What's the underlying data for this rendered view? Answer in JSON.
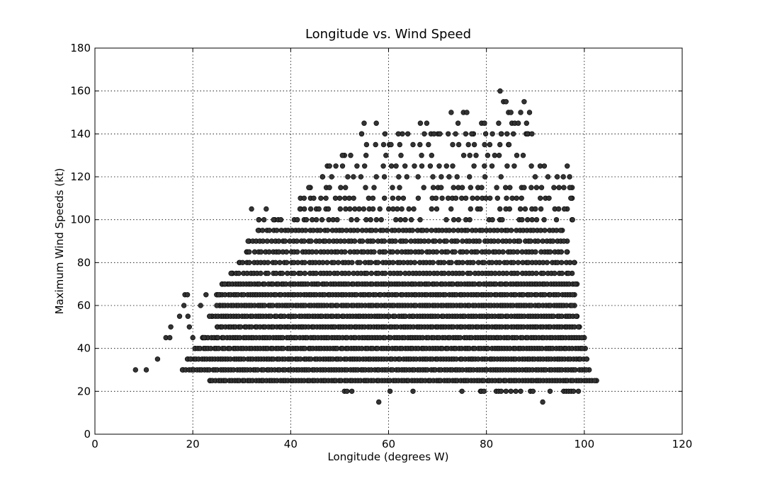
{
  "chart_data": {
    "type": "scatter",
    "title": "Longitude vs. Wind Speed",
    "xlabel": "Longitude (degrees W)",
    "ylabel": "Maximum Wind Speeds (kt)",
    "xlim": [
      0,
      120
    ],
    "ylim": [
      0,
      180
    ],
    "xticks": [
      0,
      20,
      40,
      60,
      80,
      100,
      120
    ],
    "yticks": [
      0,
      20,
      40,
      60,
      80,
      100,
      120,
      140,
      160,
      180
    ],
    "grid": true,
    "point_color": "#333333",
    "envelope": [
      {
        "speed": 25,
        "min": 23.5,
        "max": 102.5
      },
      {
        "speed": 30,
        "min": 18,
        "max": 101
      },
      {
        "speed": 35,
        "min": 19,
        "max": 100.5
      },
      {
        "speed": 40,
        "min": 20.5,
        "max": 100.2
      },
      {
        "speed": 45,
        "min": 22,
        "max": 100
      },
      {
        "speed": 50,
        "min": 25,
        "max": 99
      },
      {
        "speed": 55,
        "min": 24,
        "max": 98.5
      },
      {
        "speed": 60,
        "min": 25.5,
        "max": 98
      },
      {
        "speed": 65,
        "min": 25,
        "max": 98
      },
      {
        "speed": 70,
        "min": 26,
        "max": 98.5
      },
      {
        "speed": 75,
        "min": 28,
        "max": 97.5
      },
      {
        "speed": 80,
        "min": 29.5,
        "max": 98
      },
      {
        "speed": 85,
        "min": 31,
        "max": 96.5
      },
      {
        "speed": 90,
        "min": 31.5,
        "max": 96.5
      },
      {
        "speed": 95,
        "min": 33.5,
        "max": 95.5
      },
      {
        "speed": 100,
        "min": 33.5,
        "max": 97.5
      },
      {
        "speed": 105,
        "min": 42,
        "max": 96.5
      },
      {
        "speed": 110,
        "min": 42,
        "max": 97.5
      },
      {
        "speed": 115,
        "min": 44,
        "max": 97.5
      },
      {
        "speed": 120,
        "min": 46.5,
        "max": 97
      },
      {
        "speed": 125,
        "min": 47.5,
        "max": 96.5
      },
      {
        "speed": 130,
        "min": 51,
        "max": 87.5
      },
      {
        "speed": 135,
        "min": 55.5,
        "max": 84.5
      },
      {
        "speed": 140,
        "min": 54.5,
        "max": 88.5
      }
    ],
    "outliers": [
      {
        "x": 8.3,
        "y": 30
      },
      {
        "x": 10.5,
        "y": 30
      },
      {
        "x": 12.8,
        "y": 35
      },
      {
        "x": 14.5,
        "y": 45
      },
      {
        "x": 15.3,
        "y": 45
      },
      {
        "x": 15.5,
        "y": 50
      },
      {
        "x": 17.3,
        "y": 55
      },
      {
        "x": 18.2,
        "y": 60
      },
      {
        "x": 18.4,
        "y": 65
      },
      {
        "x": 18.9,
        "y": 65
      },
      {
        "x": 19.0,
        "y": 55
      },
      {
        "x": 19.3,
        "y": 50
      },
      {
        "x": 19.5,
        "y": 35
      },
      {
        "x": 20.0,
        "y": 45
      },
      {
        "x": 21.6,
        "y": 60
      },
      {
        "x": 22.3,
        "y": 45
      },
      {
        "x": 22.7,
        "y": 65
      },
      {
        "x": 23.4,
        "y": 55
      },
      {
        "x": 24.9,
        "y": 60
      },
      {
        "x": 25.3,
        "y": 65
      },
      {
        "x": 26.0,
        "y": 70
      },
      {
        "x": 26.5,
        "y": 70
      },
      {
        "x": 27.8,
        "y": 75
      },
      {
        "x": 32.0,
        "y": 105
      },
      {
        "x": 35.0,
        "y": 105
      },
      {
        "x": 36.5,
        "y": 100
      },
      {
        "x": 38.0,
        "y": 100
      },
      {
        "x": 51.0,
        "y": 20
      },
      {
        "x": 51.5,
        "y": 20
      },
      {
        "x": 52.5,
        "y": 20
      },
      {
        "x": 58.0,
        "y": 15
      },
      {
        "x": 60.3,
        "y": 20
      },
      {
        "x": 65.0,
        "y": 20
      },
      {
        "x": 75.0,
        "y": 20
      },
      {
        "x": 78.8,
        "y": 20
      },
      {
        "x": 79.0,
        "y": 20
      },
      {
        "x": 79.5,
        "y": 20
      },
      {
        "x": 82.0,
        "y": 20
      },
      {
        "x": 82.5,
        "y": 20
      },
      {
        "x": 83.0,
        "y": 20
      },
      {
        "x": 84.0,
        "y": 20
      },
      {
        "x": 85.0,
        "y": 20
      },
      {
        "x": 86.0,
        "y": 20
      },
      {
        "x": 87.0,
        "y": 20
      },
      {
        "x": 89.0,
        "y": 20
      },
      {
        "x": 89.5,
        "y": 20
      },
      {
        "x": 91.5,
        "y": 15
      },
      {
        "x": 93.0,
        "y": 20
      },
      {
        "x": 95.8,
        "y": 20
      },
      {
        "x": 96.3,
        "y": 20
      },
      {
        "x": 96.8,
        "y": 20
      },
      {
        "x": 97.3,
        "y": 20
      },
      {
        "x": 97.8,
        "y": 20
      },
      {
        "x": 98.8,
        "y": 20
      },
      {
        "x": 57.5,
        "y": 145
      },
      {
        "x": 55.0,
        "y": 145
      },
      {
        "x": 66.5,
        "y": 145
      },
      {
        "x": 67.8,
        "y": 145
      },
      {
        "x": 69.3,
        "y": 140
      },
      {
        "x": 70.5,
        "y": 140
      },
      {
        "x": 72.8,
        "y": 150
      },
      {
        "x": 75.3,
        "y": 150
      },
      {
        "x": 76.0,
        "y": 150
      },
      {
        "x": 74.2,
        "y": 145
      },
      {
        "x": 77.0,
        "y": 140
      },
      {
        "x": 79.0,
        "y": 145
      },
      {
        "x": 79.6,
        "y": 145
      },
      {
        "x": 82.8,
        "y": 160
      },
      {
        "x": 83.5,
        "y": 155
      },
      {
        "x": 84.0,
        "y": 155
      },
      {
        "x": 84.5,
        "y": 150
      },
      {
        "x": 85.0,
        "y": 150
      },
      {
        "x": 85.2,
        "y": 145
      },
      {
        "x": 85.8,
        "y": 145
      },
      {
        "x": 86.5,
        "y": 145
      },
      {
        "x": 87.0,
        "y": 150
      },
      {
        "x": 87.7,
        "y": 155
      },
      {
        "x": 88.2,
        "y": 145
      },
      {
        "x": 88.8,
        "y": 150
      },
      {
        "x": 88.4,
        "y": 140
      },
      {
        "x": 89.3,
        "y": 140
      },
      {
        "x": 82.5,
        "y": 145
      },
      {
        "x": 83.0,
        "y": 140
      },
      {
        "x": 84.2,
        "y": 140
      },
      {
        "x": 85.5,
        "y": 140
      },
      {
        "x": 62.0,
        "y": 140
      },
      {
        "x": 60.5,
        "y": 135
      }
    ]
  }
}
